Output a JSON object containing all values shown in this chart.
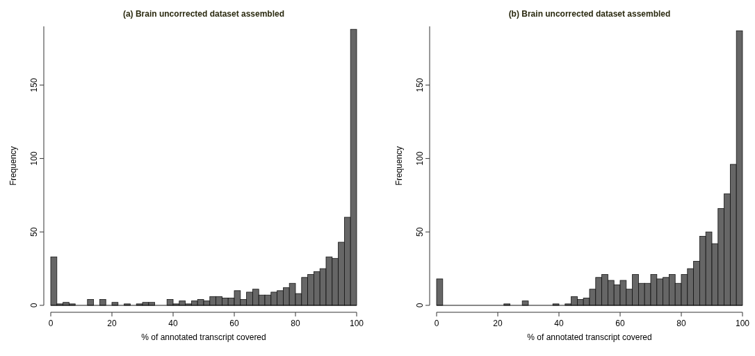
{
  "chart_data": [
    {
      "type": "histogram",
      "title": "(a) Brain uncorrected dataset assembled",
      "xlabel": "% of annotated transcript covered",
      "ylabel": "Frequency",
      "color": "#666666",
      "bins": [
        0,
        2,
        4,
        6,
        8,
        10,
        12,
        14,
        16,
        18,
        20,
        22,
        24,
        26,
        28,
        30,
        32,
        34,
        36,
        38,
        40,
        42,
        44,
        46,
        48,
        50,
        52,
        54,
        56,
        58,
        60,
        62,
        64,
        66,
        68,
        70,
        72,
        74,
        76,
        78,
        80,
        82,
        84,
        86,
        88,
        90,
        92,
        94,
        96,
        98,
        100
      ],
      "values": [
        33,
        1,
        2,
        1,
        0,
        0,
        4,
        0,
        4,
        0,
        2,
        0,
        1,
        0,
        1,
        2,
        2,
        0,
        0,
        4,
        1,
        3,
        1,
        3,
        4,
        3,
        6,
        6,
        5,
        5,
        10,
        4,
        9,
        11,
        7,
        7,
        9,
        10,
        12,
        15,
        8,
        19,
        21,
        23,
        25,
        33,
        32,
        43,
        60,
        188
      ],
      "xlim": [
        0,
        100
      ],
      "xticks": [
        0,
        20,
        40,
        60,
        80,
        100
      ],
      "ylim": [
        0,
        190
      ],
      "yticks": [
        0,
        50,
        100,
        150
      ]
    },
    {
      "type": "histogram",
      "title": "(b) Brain uncorrected dataset assembled",
      "xlabel": "% of annotated transcript covered",
      "ylabel": "Frequency",
      "color": "#666666",
      "bins": [
        0,
        2,
        4,
        6,
        8,
        10,
        12,
        14,
        16,
        18,
        20,
        22,
        24,
        26,
        28,
        30,
        32,
        34,
        36,
        38,
        40,
        42,
        44,
        46,
        48,
        50,
        52,
        54,
        56,
        58,
        60,
        62,
        64,
        66,
        68,
        70,
        72,
        74,
        76,
        78,
        80,
        82,
        84,
        86,
        88,
        90,
        92,
        94,
        96,
        98,
        100
      ],
      "values": [
        18,
        0,
        0,
        0,
        0,
        0,
        0,
        0,
        0,
        0,
        0,
        1,
        0,
        0,
        3,
        0,
        0,
        0,
        0,
        1,
        0,
        1,
        6,
        4,
        5,
        11,
        19,
        21,
        17,
        14,
        17,
        11,
        21,
        15,
        15,
        21,
        18,
        19,
        21,
        15,
        21,
        25,
        30,
        47,
        50,
        42,
        66,
        76,
        96,
        187
      ],
      "xlim": [
        0,
        100
      ],
      "xticks": [
        0,
        20,
        40,
        60,
        80,
        100
      ],
      "ylim": [
        0,
        190
      ],
      "yticks": [
        0,
        50,
        100,
        150
      ]
    }
  ]
}
